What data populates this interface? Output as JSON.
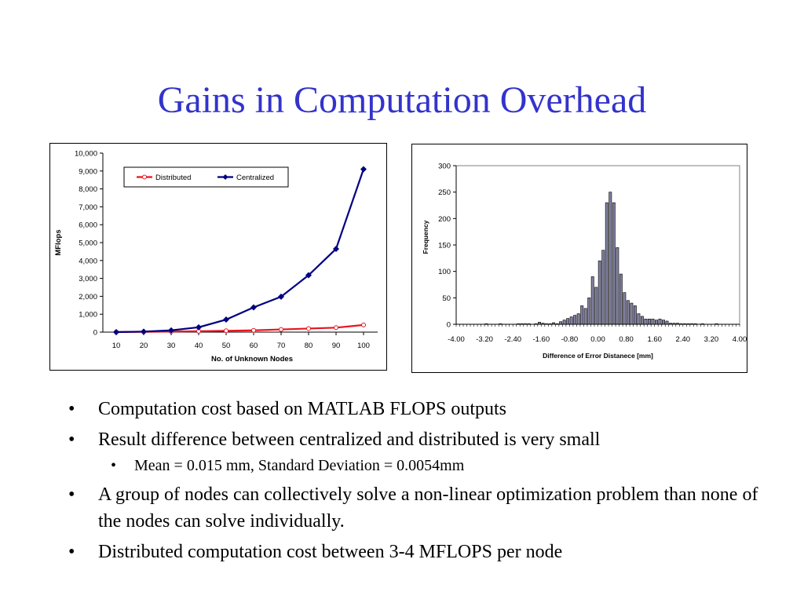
{
  "slide": {
    "title": "Gains in Computation Overhead",
    "bullets": [
      {
        "text": "Computation cost based on MATLAB FLOPS outputs",
        "level": 1
      },
      {
        "text": "Result difference between centralized and distributed is very small",
        "level": 1
      },
      {
        "text": "Mean = 0.015 mm, Standard Deviation = 0.0054mm",
        "level": 2
      },
      {
        "text": "A group of nodes can collectively solve a non-linear optimization problem than none of the nodes can solve individually.",
        "level": 1
      },
      {
        "text": "Distributed computation cost between 3-4 MFLOPS per node",
        "level": 1
      }
    ],
    "bullet_glyph": "•",
    "title_color": "#3333cc"
  },
  "chart_data": [
    {
      "type": "line",
      "title": "",
      "xlabel": "No. of Unknown Nodes",
      "ylabel": "MFlops",
      "x": [
        10,
        20,
        30,
        40,
        50,
        60,
        70,
        80,
        90,
        100
      ],
      "x_tick_labels": [
        "10",
        "20",
        "30",
        "40",
        "50",
        "60",
        "70",
        "80",
        "90",
        "100"
      ],
      "ylim": [
        0,
        10000
      ],
      "y_ticks": [
        0,
        1000,
        2000,
        3000,
        4000,
        5000,
        6000,
        7000,
        8000,
        9000,
        10000
      ],
      "y_tick_labels": [
        "0",
        "1,000",
        "2,000",
        "3,000",
        "4,000",
        "5,000",
        "6,000",
        "7,000",
        "8,000",
        "9,000",
        "10,000"
      ],
      "legend_position": "top-right",
      "grid": false,
      "series": [
        {
          "name": "Distributed",
          "color": "#e8141e",
          "marker": "circle-open",
          "values": [
            5,
            15,
            30,
            50,
            75,
            100,
            150,
            200,
            250,
            400
          ]
        },
        {
          "name": "Centralized",
          "color": "#000080",
          "marker": "diamond",
          "values": [
            0,
            30,
            100,
            270,
            700,
            1380,
            1980,
            3180,
            4650,
            9100
          ]
        }
      ]
    },
    {
      "type": "bar",
      "title": "",
      "xlabel": "Difference of Error Distanece [mm]",
      "ylabel": "Frequency",
      "ylim": [
        0,
        300
      ],
      "y_ticks": [
        0,
        50,
        100,
        150,
        200,
        250,
        300
      ],
      "y_tick_labels": [
        "0",
        "50",
        "100",
        "150",
        "200",
        "250",
        "300"
      ],
      "xlim": [
        -4.0,
        4.0
      ],
      "x_ticks": [
        -4.0,
        -3.2,
        -2.4,
        -1.6,
        -0.8,
        0.0,
        0.8,
        1.6,
        2.4,
        3.2,
        4.0
      ],
      "x_tick_labels": [
        "-4.00",
        "-3.20",
        "-2.40",
        "-1.60",
        "-0.80",
        "0.00",
        "0.80",
        "1.60",
        "2.40",
        "3.20",
        "4.00"
      ],
      "grid": false,
      "bar_color": "#8080a0",
      "bin_width": 0.1,
      "bin_centers": [
        -3.95,
        -3.85,
        -3.75,
        -3.65,
        -3.55,
        -3.45,
        -3.35,
        -3.25,
        -3.15,
        -3.05,
        -2.95,
        -2.85,
        -2.75,
        -2.65,
        -2.55,
        -2.45,
        -2.35,
        -2.25,
        -2.15,
        -2.05,
        -1.95,
        -1.85,
        -1.75,
        -1.65,
        -1.55,
        -1.45,
        -1.35,
        -1.25,
        -1.15,
        -1.05,
        -0.95,
        -0.85,
        -0.75,
        -0.65,
        -0.55,
        -0.45,
        -0.35,
        -0.25,
        -0.15,
        -0.05,
        0.05,
        0.15,
        0.25,
        0.35,
        0.45,
        0.55,
        0.65,
        0.75,
        0.85,
        0.95,
        1.05,
        1.15,
        1.25,
        1.35,
        1.45,
        1.55,
        1.65,
        1.75,
        1.85,
        1.95,
        2.05,
        2.15,
        2.25,
        2.35,
        2.45,
        2.55,
        2.65,
        2.75,
        2.85,
        2.95,
        3.05,
        3.15,
        3.25,
        3.35,
        3.45,
        3.55,
        3.65,
        3.75,
        3.85,
        3.95
      ],
      "values": [
        0,
        0,
        0,
        0,
        0,
        0,
        0,
        0,
        1,
        0,
        0,
        0,
        1,
        0,
        0,
        0,
        0,
        1,
        1,
        1,
        1,
        0,
        1,
        4,
        2,
        1,
        1,
        3,
        1,
        5,
        8,
        11,
        14,
        17,
        20,
        35,
        30,
        50,
        90,
        70,
        120,
        140,
        230,
        250,
        230,
        145,
        95,
        60,
        45,
        40,
        35,
        20,
        15,
        10,
        10,
        10,
        8,
        10,
        8,
        6,
        2,
        2,
        2,
        1,
        1,
        1,
        1,
        1,
        0,
        1,
        0,
        0,
        0,
        1,
        0,
        0,
        0,
        0,
        0,
        0
      ]
    }
  ]
}
